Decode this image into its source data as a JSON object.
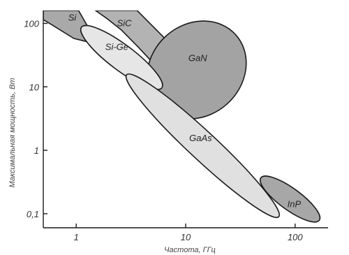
{
  "chart_data": {
    "type": "area",
    "title": "",
    "xlabel": "Частота, ГГц",
    "ylabel": "Максимальная мощность, Вт",
    "x_scale": "log",
    "y_scale": "log",
    "xlim": [
      0.5,
      200
    ],
    "ylim": [
      0.06,
      160
    ],
    "x_ticks": [
      {
        "value": 1,
        "label": "1"
      },
      {
        "value": 10,
        "label": "10"
      },
      {
        "value": 100,
        "label": "100"
      }
    ],
    "y_ticks": [
      {
        "value": 0.1,
        "label": "0,1"
      },
      {
        "value": 1,
        "label": "1"
      },
      {
        "value": 10,
        "label": "10"
      },
      {
        "value": 100,
        "label": "100"
      }
    ],
    "grid": false,
    "regions": [
      {
        "name": "Si",
        "shape": "polygon",
        "color": "#a9a9a9",
        "points": [
          [
            0.5,
            160
          ],
          [
            1.05,
            160
          ],
          [
            1.35,
            75
          ],
          [
            1.35,
            50
          ],
          [
            0.95,
            58
          ],
          [
            0.6,
            95
          ],
          [
            0.5,
            115
          ]
        ],
        "label_at": [
          0.92,
          122
        ]
      },
      {
        "name": "SiC",
        "shape": "polygon",
        "color": "#b3b3b3",
        "points": [
          [
            1.5,
            160
          ],
          [
            3.6,
            160
          ],
          [
            8,
            40
          ],
          [
            5.4,
            21
          ],
          [
            3.7,
            42
          ],
          [
            2.6,
            78
          ],
          [
            1.9,
            120
          ]
        ],
        "label_at": [
          2.75,
          100
        ]
      },
      {
        "name": "GaN",
        "shape": "ellipse",
        "color": "#a3a3a3",
        "center": [
          12.6,
          18.5
        ],
        "rx_decades": 0.48,
        "ry_decades": 0.72,
        "angle_deg": -42,
        "label_at": [
          12.9,
          28
        ]
      },
      {
        "name": "Si-Ge",
        "shape": "ellipse",
        "color": "#e6e6e6",
        "center": [
          2.6,
          29
        ],
        "rx_decades": 0.46,
        "ry_decades": 0.2,
        "angle_deg": 37,
        "label_at": [
          2.35,
          42
        ]
      },
      {
        "name": "GaAs",
        "shape": "ellipse",
        "color": "#e0e0e0",
        "center": [
          14.3,
          1.18
        ],
        "rx_decades": 0.95,
        "ry_decades": 0.22,
        "angle_deg": 43,
        "label_at": [
          13.7,
          1.55
        ]
      },
      {
        "name": "InP",
        "shape": "ellipse",
        "color": "#a7a7a7",
        "center": [
          90,
          0.17
        ],
        "rx_decades": 0.33,
        "ry_decades": 0.17,
        "angle_deg": 36,
        "label_at": [
          98,
          0.14
        ]
      }
    ]
  }
}
